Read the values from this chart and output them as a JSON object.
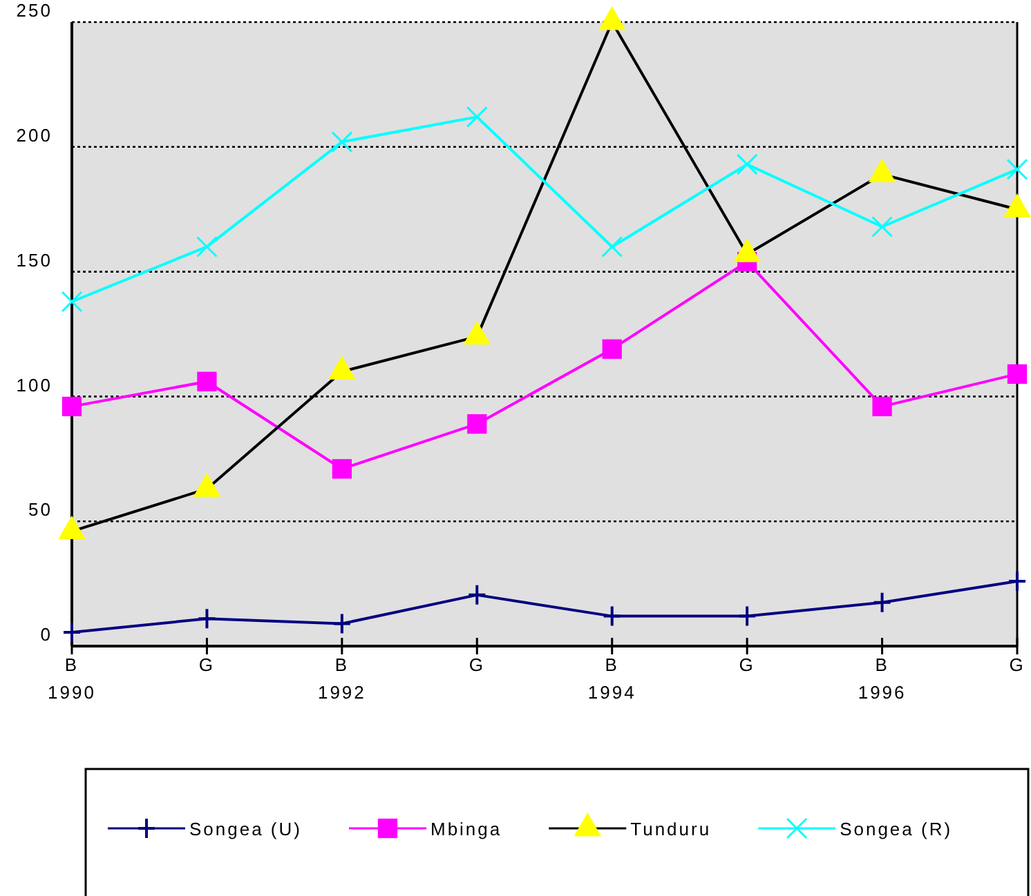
{
  "chart_data": {
    "type": "line",
    "categories": [
      "B\n1990",
      "G",
      "B\n1992",
      "G",
      "B\n1994",
      "G",
      "B\n1996",
      "G"
    ],
    "ylim": [
      0,
      250
    ],
    "yticks": [
      0,
      50,
      100,
      150,
      200,
      250
    ],
    "grid": "y",
    "legend": "bottom",
    "series": [
      {
        "name": "Songea (U)",
        "color": "#000080",
        "marker": "cross",
        "values": [
          5.5,
          11,
          9,
          20.5,
          12,
          12,
          17.5,
          26
        ]
      },
      {
        "name": "Mbinga",
        "color": "#ff00ff",
        "marker": "square",
        "values": [
          96,
          106,
          71,
          89,
          119,
          154,
          96,
          109
        ]
      },
      {
        "name": "Tunduru",
        "color": "#000000",
        "colors": [
          "#ffff00",
          "#ffff00",
          "#ffff00",
          "#ffff00",
          "#ffff00",
          "#ffff00",
          "#ffff00",
          "#ffff00"
        ],
        "marker": "triangle",
        "values": [
          46,
          63,
          110,
          124,
          250,
          157,
          189,
          175
        ]
      },
      {
        "name": "Songea (R)",
        "color": "#00ffff",
        "marker": "x",
        "values": [
          138,
          160,
          202,
          212,
          160,
          193,
          168,
          191
        ]
      }
    ]
  }
}
